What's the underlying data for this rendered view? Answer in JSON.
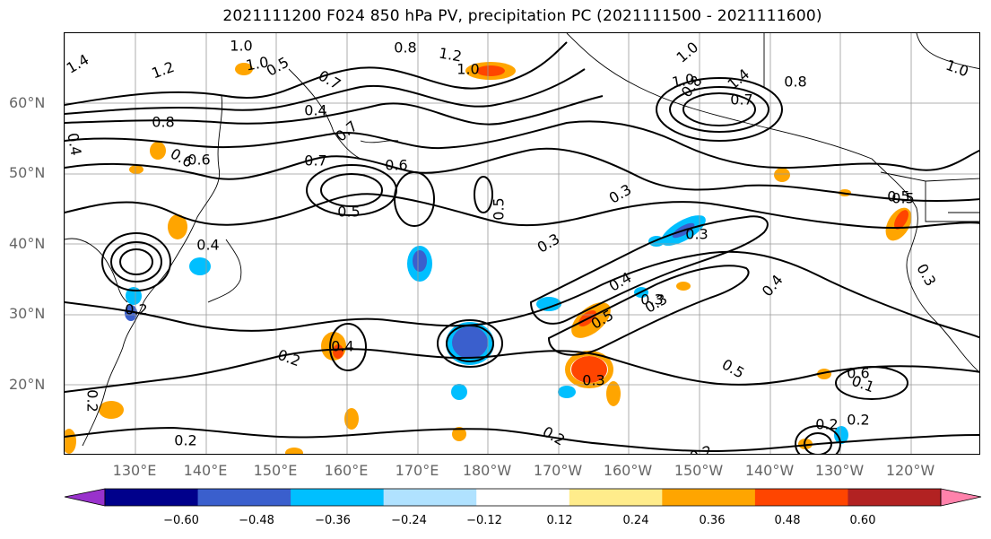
{
  "title": "2021111200 F024 850 hPa PV, precipitation PC (2021111500 - 2021111600)",
  "lat_labels": [
    "60°N",
    "50°N",
    "40°N",
    "30°N",
    "20°N"
  ],
  "lon_labels": [
    "130°E",
    "140°E",
    "150°E",
    "160°E",
    "170°E",
    "180°W",
    "170°W",
    "160°W",
    "150°W",
    "140°W",
    "130°W",
    "120°W"
  ],
  "colorbar": {
    "tick_labels": [
      "−0.60",
      "−0.48",
      "−0.36",
      "−0.24",
      "−0.12",
      "0.12",
      "0.24",
      "0.36",
      "0.48",
      "0.60"
    ],
    "colors": [
      "#9932cc",
      "#00008b",
      "#3a5fcd",
      "#00bfff",
      "#b0e2ff",
      "#ffffff",
      "#ffec8b",
      "#ffa500",
      "#ff4500",
      "#b22222",
      "#ff82ab"
    ]
  },
  "contour_labels": [
    "1.4",
    "1.0",
    "0.8",
    "1.2",
    "1.0",
    "0.5",
    "0.7",
    "1.2",
    "1.0",
    "0.8",
    "1.0",
    "1.0",
    "1.4",
    "0.7",
    "0.8",
    "0.4",
    "0.8",
    "0.6",
    "0.7",
    "0.4",
    "0.6",
    "0.7",
    "0.6",
    "0.5",
    "0.5",
    "0.3",
    "0.3",
    "0.5",
    "0.4",
    "0.3",
    "0.4",
    "0.5",
    "0.3",
    "0.4",
    "0.2",
    "0.4",
    "0.2",
    "0.3",
    "0.5",
    "0.6",
    "0.1",
    "0.2",
    "0.2",
    "0.2",
    "0.2",
    "0.2",
    "0.3",
    "1.0",
    "0.5",
    "0.3",
    "0.2"
  ]
}
